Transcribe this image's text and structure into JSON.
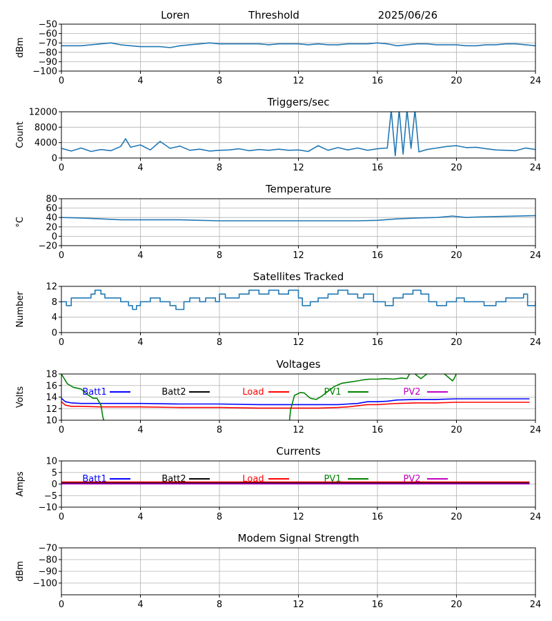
{
  "header": {
    "station": "Loren",
    "mode": "Threshold",
    "date": "2025/06/26"
  },
  "chart_data": [
    {
      "id": "rssi",
      "type": "line",
      "title": "",
      "xlabel": "",
      "ylabel": "dBm",
      "xlim": [
        0,
        24
      ],
      "ylim": [
        -100,
        -50
      ],
      "xticks": [
        "0",
        "4",
        "8",
        "12",
        "16",
        "20",
        "24"
      ],
      "yticks": [
        "−50",
        "−60",
        "−70",
        "−80",
        "−90",
        "−100"
      ],
      "ytick_values": [
        -50,
        -60,
        -70,
        -80,
        -90,
        -100
      ],
      "grid": true,
      "series": [
        {
          "color": "#1f77b4",
          "x": [
            0,
            0.5,
            1,
            1.5,
            2,
            2.5,
            3,
            3.5,
            4,
            4.5,
            5,
            5.5,
            6,
            6.5,
            7,
            7.5,
            8,
            8.5,
            9,
            9.5,
            10,
            10.5,
            11,
            11.5,
            12,
            12.5,
            13,
            13.5,
            14,
            14.5,
            15,
            15.5,
            16,
            16.5,
            17,
            17.5,
            18,
            18.5,
            19,
            19.5,
            20,
            20.5,
            21,
            21.5,
            22,
            22.5,
            23,
            23.5,
            24
          ],
          "values": [
            -73,
            -73,
            -73,
            -72,
            -71,
            -70,
            -72,
            -73,
            -74,
            -74,
            -74,
            -75,
            -73,
            -72,
            -71,
            -70,
            -71,
            -71,
            -71,
            -71,
            -71,
            -72,
            -71,
            -71,
            -71,
            -72,
            -71,
            -72,
            -72,
            -71,
            -71,
            -71,
            -70,
            -71,
            -73,
            -72,
            -71,
            -71,
            -72,
            -72,
            -72,
            -73,
            -73,
            -72,
            -72,
            -71,
            -71,
            -72,
            -73
          ]
        }
      ]
    },
    {
      "id": "triggers",
      "type": "line",
      "title": "Triggers/sec",
      "xlabel": "",
      "ylabel": "Count",
      "xlim": [
        0,
        24
      ],
      "ylim": [
        0,
        12000
      ],
      "xticks": [
        "0",
        "4",
        "8",
        "12",
        "16",
        "20",
        "24"
      ],
      "yticks": [
        "0",
        "4000",
        "8000",
        "12000"
      ],
      "ytick_values": [
        0,
        4000,
        8000,
        12000
      ],
      "grid": true,
      "series": [
        {
          "color": "#1f77b4",
          "x": [
            0,
            0.5,
            1,
            1.5,
            2,
            2.5,
            3,
            3.25,
            3.5,
            4,
            4.5,
            5,
            5.5,
            6,
            6.5,
            7,
            7.5,
            8,
            8.5,
            9,
            9.5,
            10,
            10.5,
            11,
            11.5,
            12,
            12.5,
            13,
            13.5,
            14,
            14.5,
            15,
            15.5,
            16,
            16.5,
            16.7,
            16.9,
            17.1,
            17.3,
            17.5,
            17.7,
            17.9,
            18.1,
            18.5,
            19,
            19.5,
            20,
            20.5,
            21,
            21.5,
            22,
            22.5,
            23,
            23.5,
            24
          ],
          "values": [
            2500,
            1800,
            2600,
            1700,
            2200,
            1900,
            3000,
            5000,
            2800,
            3400,
            2100,
            4300,
            2500,
            3100,
            2000,
            2300,
            1800,
            2000,
            2100,
            2400,
            1900,
            2200,
            2000,
            2300,
            2000,
            2100,
            1700,
            3200,
            2000,
            2700,
            2100,
            2600,
            2000,
            2400,
            2600,
            12500,
            600,
            12500,
            1000,
            12500,
            2500,
            12500,
            1600,
            2200,
            2600,
            3000,
            3200,
            2700,
            2800,
            2400,
            2100,
            2000,
            1900,
            2600,
            2200
          ]
        }
      ]
    },
    {
      "id": "temperature",
      "type": "line",
      "title": "Temperature",
      "xlabel": "",
      "ylabel": "°C",
      "xlim": [
        0,
        24
      ],
      "ylim": [
        -20,
        80
      ],
      "xticks": [
        "0",
        "4",
        "8",
        "12",
        "16",
        "20",
        "24"
      ],
      "yticks": [
        "−20",
        "0",
        "20",
        "40",
        "60",
        "80"
      ],
      "ytick_values": [
        -20,
        0,
        20,
        40,
        60,
        80
      ],
      "grid": true,
      "series": [
        {
          "color": "#1f77b4",
          "x": [
            0,
            1,
            2,
            3,
            4,
            5,
            6,
            7,
            8,
            9,
            10,
            11,
            12,
            13,
            14,
            15,
            16,
            17,
            18,
            19,
            19.8,
            20.5,
            21,
            22,
            23,
            24
          ],
          "values": [
            40,
            39,
            37,
            35,
            35,
            35,
            35,
            34,
            33,
            33,
            33,
            33,
            33,
            33,
            33,
            33,
            34,
            37,
            39,
            40,
            43,
            40,
            41,
            42,
            43,
            44
          ]
        }
      ]
    },
    {
      "id": "satellites",
      "type": "line",
      "title": "Satellites Tracked",
      "xlabel": "",
      "ylabel": "Number",
      "xlim": [
        0,
        24
      ],
      "ylim": [
        0,
        12
      ],
      "xticks": [
        "0",
        "4",
        "8",
        "12",
        "16",
        "20",
        "24"
      ],
      "yticks": [
        "0",
        "4",
        "8",
        "12"
      ],
      "ytick_values": [
        0,
        4,
        8,
        12
      ],
      "grid": true,
      "series": [
        {
          "color": "#1f77b4",
          "step": true,
          "x": [
            0,
            0.25,
            0.5,
            1,
            1.5,
            1.7,
            2,
            2.2,
            2.6,
            3,
            3.4,
            3.6,
            3.8,
            4,
            4.5,
            5,
            5.5,
            5.8,
            6.2,
            6.5,
            7,
            7.3,
            7.8,
            8,
            8.3,
            9,
            9.5,
            10,
            10.5,
            11,
            11.5,
            12,
            12.2,
            12.6,
            13,
            13.5,
            14,
            14.5,
            15,
            15.3,
            15.8,
            16,
            16.4,
            16.8,
            17.3,
            17.8,
            18.2,
            18.6,
            19,
            19.5,
            20,
            20.4,
            21,
            21.4,
            22,
            22.5,
            23,
            23.4,
            23.6,
            24
          ],
          "values": [
            8,
            7,
            9,
            9,
            10,
            11,
            10,
            9,
            9,
            8,
            7,
            6,
            7,
            8,
            9,
            8,
            7,
            6,
            8,
            9,
            8,
            9,
            8,
            10,
            9,
            10,
            11,
            10,
            11,
            10,
            11,
            9,
            7,
            8,
            9,
            10,
            11,
            10,
            9,
            10,
            8,
            8,
            7,
            9,
            10,
            11,
            10,
            8,
            7,
            8,
            9,
            8,
            8,
            7,
            8,
            9,
            9,
            10,
            7,
            8
          ]
        }
      ]
    },
    {
      "id": "voltages",
      "type": "line",
      "title": "Voltages",
      "xlabel": "",
      "ylabel": "Volts",
      "xlim": [
        0,
        24
      ],
      "ylim": [
        10,
        18
      ],
      "xticks": [
        "0",
        "4",
        "8",
        "12",
        "16",
        "20",
        "24"
      ],
      "yticks": [
        "10",
        "12",
        "14",
        "16",
        "18"
      ],
      "ytick_values": [
        10,
        12,
        14,
        16,
        18
      ],
      "grid": true,
      "legend": "top",
      "series": [
        {
          "name": "Batt1",
          "color": "#0000ff",
          "x": [
            0,
            0.2,
            0.5,
            1,
            2,
            4,
            6,
            8,
            10,
            11,
            12,
            13,
            14,
            14.5,
            15,
            15.5,
            16,
            16.5,
            17,
            18,
            19,
            20,
            21,
            22,
            23,
            23.7
          ],
          "values": [
            13.8,
            13.2,
            13.0,
            12.9,
            12.9,
            12.9,
            12.8,
            12.8,
            12.7,
            12.7,
            12.7,
            12.7,
            12.7,
            12.8,
            12.9,
            13.2,
            13.2,
            13.3,
            13.5,
            13.6,
            13.6,
            13.7,
            13.7,
            13.7,
            13.7,
            13.7
          ]
        },
        {
          "name": "Batt2",
          "color": "#000000",
          "x": [],
          "values": []
        },
        {
          "name": "Load",
          "color": "#ff0000",
          "x": [
            0,
            0.2,
            0.5,
            1,
            2,
            4,
            6,
            8,
            10,
            11,
            12,
            13,
            14,
            14.5,
            15,
            15.5,
            16,
            16.5,
            17,
            18,
            19,
            20,
            21,
            22,
            23,
            23.7
          ],
          "values": [
            13.2,
            12.6,
            12.4,
            12.4,
            12.3,
            12.3,
            12.2,
            12.2,
            12.1,
            12.1,
            12.1,
            12.1,
            12.2,
            12.3,
            12.5,
            12.7,
            12.7,
            12.8,
            12.9,
            13.0,
            13.0,
            13.1,
            13.1,
            13.1,
            13.1,
            13.1
          ]
        },
        {
          "name": "PV1",
          "color": "#008000",
          "x": [
            0,
            0.3,
            0.6,
            1,
            1.3,
            1.6,
            1.8,
            2.0,
            2.1,
            2.15,
            null,
            11.55,
            11.6,
            11.8,
            12.1,
            12.3,
            12.6,
            12.9,
            13.2,
            13.5,
            13.8,
            14.2,
            14.6,
            15,
            15.3,
            15.6,
            16,
            16.4,
            16.8,
            17.2,
            17.5,
            17.7,
            17.9,
            18.2,
            18.5,
            18.7,
            19,
            19.2,
            19.5,
            19.8,
            19.9,
            20.05
          ],
          "values": [
            18.0,
            16.3,
            15.7,
            15.4,
            14.5,
            13.8,
            13.8,
            12.6,
            10.5,
            10.0,
            null,
            10.0,
            11.8,
            14.3,
            14.8,
            14.7,
            13.8,
            13.6,
            14.2,
            15.0,
            15.8,
            16.4,
            16.6,
            16.8,
            17.0,
            17.1,
            17.1,
            17.2,
            17.1,
            17.3,
            17.2,
            18.5,
            18.0,
            17.2,
            18.0,
            18.4,
            18.2,
            18.5,
            17.7,
            16.8,
            17.3,
            18.5
          ]
        },
        {
          "name": "PV2",
          "color": "#bf00bf",
          "x": [],
          "values": []
        }
      ]
    },
    {
      "id": "currents",
      "type": "line",
      "title": "Currents",
      "xlabel": "",
      "ylabel": "Amps",
      "xlim": [
        0,
        24
      ],
      "ylim": [
        -10,
        10
      ],
      "xticks": [
        "0",
        "4",
        "8",
        "12",
        "16",
        "20",
        "24"
      ],
      "yticks": [
        "−10",
        "−5",
        "0",
        "5",
        "10"
      ],
      "ytick_values": [
        -10,
        -5,
        0,
        5,
        10
      ],
      "grid": true,
      "legend": "top",
      "series": [
        {
          "name": "Batt1",
          "color": "#0000ff",
          "x": [
            0,
            23.7
          ],
          "values": [
            0.3,
            0.3
          ]
        },
        {
          "name": "Batt2",
          "color": "#000000",
          "x": [
            0,
            23.7
          ],
          "values": [
            0.6,
            0.6
          ]
        },
        {
          "name": "Load",
          "color": "#ff0000",
          "x": [
            0,
            23.7
          ],
          "values": [
            0.9,
            0.9
          ]
        },
        {
          "name": "PV1",
          "color": "#008000",
          "x": [
            0,
            23.7
          ],
          "values": [
            0.1,
            0.1
          ]
        },
        {
          "name": "PV2",
          "color": "#bf00bf",
          "x": [
            0,
            23.7
          ],
          "values": [
            0.05,
            0.05
          ]
        }
      ]
    },
    {
      "id": "modem",
      "type": "line",
      "title": "Modem Signal Strength",
      "xlabel": "",
      "ylabel": "dBm",
      "xlim": [
        0,
        24
      ],
      "ylim": [
        -110,
        -70
      ],
      "xticks": [
        "0",
        "4",
        "8",
        "12",
        "16",
        "20",
        "24"
      ],
      "yticks": [
        "−70",
        "−80",
        "−90",
        "−100"
      ],
      "ytick_values": [
        -70,
        -80,
        -90,
        -100
      ],
      "grid": true,
      "series": []
    }
  ]
}
